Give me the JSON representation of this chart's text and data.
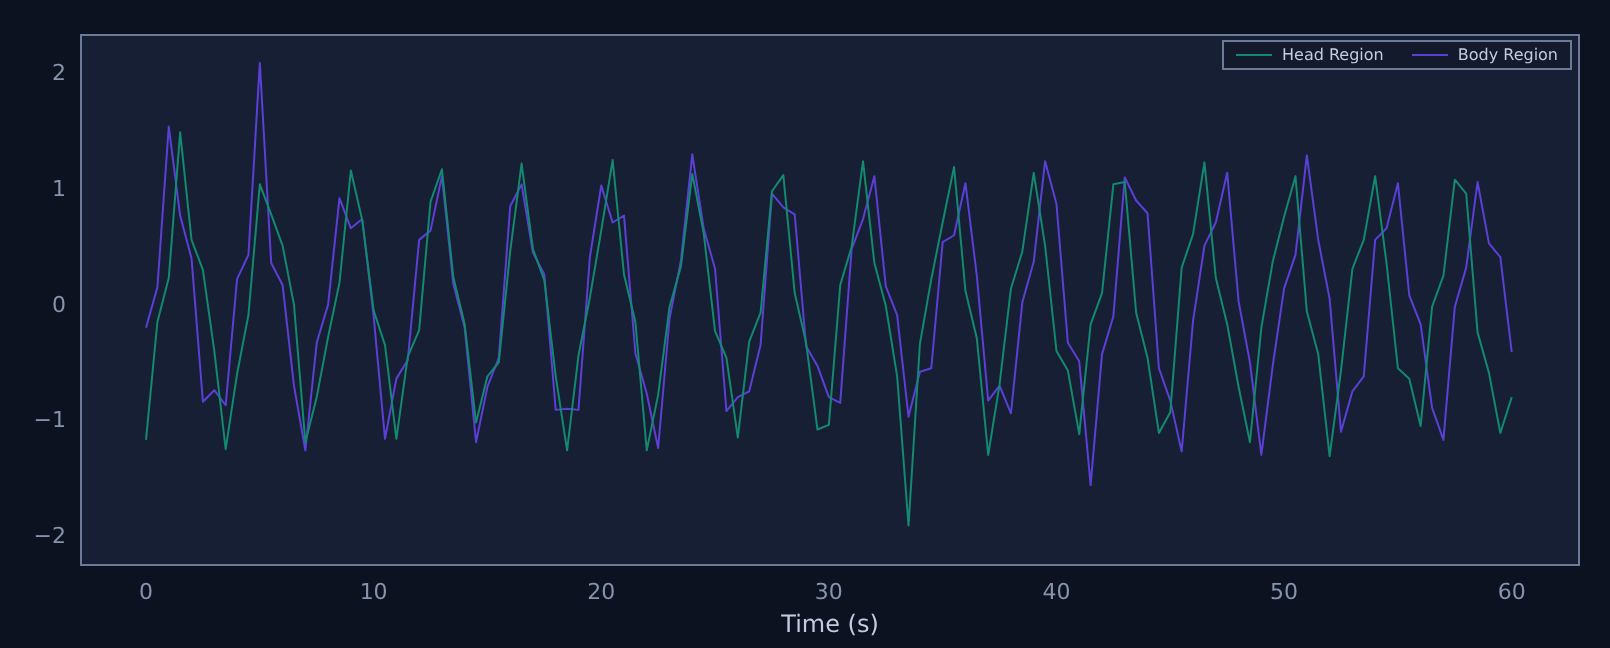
{
  "chart_data": {
    "type": "line",
    "xlabel": "Time (s)",
    "x": [
      0,
      0.5,
      1,
      1.5,
      2,
      2.5,
      3,
      3.5,
      4,
      4.5,
      5,
      5.5,
      6,
      6.5,
      7,
      7.5,
      8,
      8.5,
      9,
      9.5,
      10,
      10.5,
      11,
      11.5,
      12,
      12.5,
      13,
      13.5,
      14,
      14.5,
      15,
      15.5,
      16,
      16.5,
      17,
      17.5,
      18,
      18.5,
      19,
      19.5,
      20,
      20.5,
      21,
      21.5,
      22,
      22.5,
      23,
      23.5,
      24,
      24.5,
      25,
      25.5,
      26,
      26.5,
      27,
      27.5,
      28,
      28.5,
      29,
      29.5,
      30,
      30.5,
      31,
      31.5,
      32,
      32.5,
      33,
      33.5,
      34,
      34.5,
      35,
      35.5,
      36,
      36.5,
      37,
      37.5,
      38,
      38.5,
      39,
      39.5,
      40,
      40.5,
      41,
      41.5,
      42,
      42.5,
      43,
      43.5,
      44,
      44.5,
      45,
      45.5,
      46,
      46.5,
      47,
      47.5,
      48,
      48.5,
      49,
      49.5,
      50,
      50.5,
      51,
      51.5,
      52,
      52.5,
      53,
      53.5,
      54,
      54.5,
      55,
      55.5,
      56,
      56.5,
      57,
      57.5,
      58,
      58.5,
      59,
      59.5,
      60
    ],
    "series": [
      {
        "name": "Head Region",
        "color": "#13896f",
        "values": [
          -1.16,
          -0.14,
          0.24,
          1.5,
          0.57,
          0.31,
          -0.39,
          -1.24,
          -0.59,
          -0.08,
          1.05,
          0.79,
          0.52,
          0.01,
          -1.18,
          -0.79,
          -0.27,
          0.2,
          1.17,
          0.74,
          -0.04,
          -0.34,
          -1.15,
          -0.44,
          -0.21,
          0.9,
          1.18,
          0.25,
          -0.16,
          -1.01,
          -0.61,
          -0.49,
          0.47,
          1.23,
          0.49,
          0.22,
          -0.61,
          -1.25,
          -0.43,
          0.07,
          0.65,
          1.26,
          0.27,
          -0.14,
          -1.25,
          -0.77,
          -0.01,
          0.34,
          1.14,
          0.63,
          -0.22,
          -0.45,
          -1.14,
          -0.31,
          -0.06,
          0.99,
          1.13,
          0.11,
          -0.32,
          -1.07,
          -1.03,
          0.18,
          0.51,
          1.25,
          0.37,
          0,
          -0.61,
          -1.9,
          -0.33,
          0.23,
          0.72,
          1.2,
          0.13,
          -0.28,
          -1.29,
          -0.68,
          0.15,
          0.47,
          1.15,
          0.52,
          -0.39,
          -0.56,
          -1.11,
          -0.16,
          0.11,
          1.05,
          1.07,
          -0.06,
          -0.45,
          -1.1,
          -0.92,
          0.33,
          0.62,
          1.24,
          0.24,
          -0.16,
          -0.7,
          -1.18,
          -0.19,
          0.38,
          0.77,
          1.12,
          -0.05,
          -0.42,
          -1.3,
          -0.56,
          0.32,
          0.57,
          1.12,
          0.37,
          -0.54,
          -0.63,
          -1.04,
          -0.01,
          0.26,
          1.09,
          0.97,
          -0.23,
          -0.58,
          -1.1,
          -0.79
        ]
      },
      {
        "name": "Body Region",
        "color": "#5b3fd6",
        "values": [
          -0.19,
          0.16,
          1.55,
          0.78,
          0.41,
          -0.83,
          -0.73,
          -0.86,
          0.23,
          0.44,
          2.1,
          0.37,
          0.18,
          -0.69,
          -1.25,
          -0.32,
          0.01,
          0.93,
          0.67,
          0.75,
          -0.09,
          -1.15,
          -0.63,
          -0.47,
          0.57,
          0.65,
          1.12,
          0.19,
          -0.19,
          -1.18,
          -0.7,
          -0.45,
          0.86,
          1.05,
          0.46,
          0.27,
          -0.9,
          -0.89,
          -0.9,
          0.42,
          1.04,
          0.72,
          0.78,
          -0.41,
          -0.76,
          -1.23,
          -0.11,
          0.39,
          1.31,
          0.67,
          0.32,
          -0.91,
          -0.79,
          -0.74,
          -0.34,
          0.97,
          0.85,
          0.79,
          -0.35,
          -0.52,
          -0.79,
          -0.84,
          0.49,
          0.75,
          1.12,
          0.17,
          -0.08,
          -0.96,
          -0.57,
          -0.54,
          0.55,
          0.61,
          1.06,
          0.26,
          -0.82,
          -0.69,
          -0.93,
          0.03,
          0.38,
          1.25,
          0.88,
          -0.32,
          -0.48,
          -1.55,
          -0.42,
          -0.09,
          1.11,
          0.91,
          0.8,
          -0.54,
          -0.82,
          -1.26,
          -0.13,
          0.52,
          0.72,
          1.15,
          0.04,
          -0.49,
          -1.29,
          -0.52,
          0.15,
          0.44,
          1.3,
          0.57,
          0.06,
          -1.09,
          -0.74,
          -0.61,
          0.57,
          0.67,
          1.06,
          0.09,
          -0.16,
          -0.88,
          -1.16,
          -0.01,
          0.33,
          1.07,
          0.54,
          0.42,
          -0.4
        ]
      }
    ],
    "xlim": [
      -2.9,
      63
    ],
    "xticks": [
      0,
      10,
      20,
      30,
      40,
      50,
      60
    ],
    "ylim": [
      -2.25,
      2.35
    ],
    "yticks": [
      -2,
      -1,
      0,
      1,
      2
    ],
    "legend": "top right"
  }
}
